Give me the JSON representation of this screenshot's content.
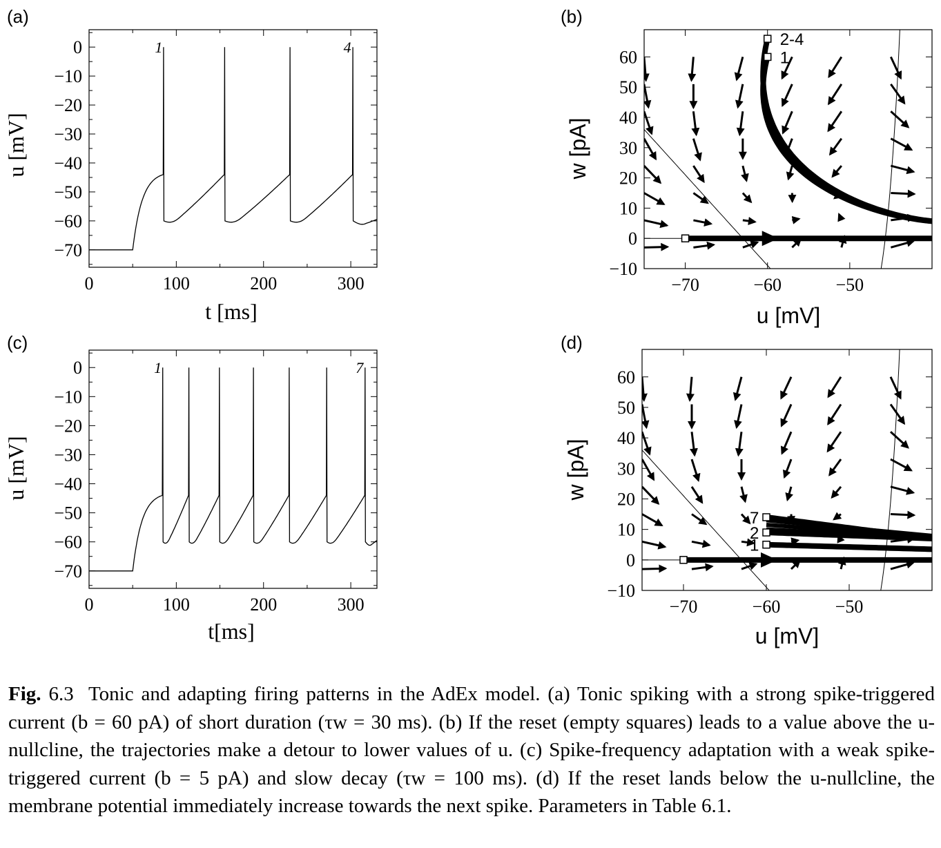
{
  "figure": {
    "panels": [
      {
        "id": "a",
        "label": "(a)",
        "type": "timeseries",
        "xlabel": "t  [ms]",
        "ylabel": "u [mV]",
        "xticks": [
          "0",
          "100",
          "200",
          "300"
        ],
        "yticks": [
          "0",
          "−10",
          "−20",
          "−30",
          "−40",
          "−50",
          "−60",
          "−70"
        ],
        "spike_labels": [
          "1",
          "4"
        ]
      },
      {
        "id": "b",
        "label": "(b)",
        "type": "phase",
        "xlabel": "u [mV]",
        "ylabel": "w [pA]",
        "xticks": [
          "−70",
          "−60",
          "−50"
        ],
        "yticks": [
          "60",
          "50",
          "40",
          "30",
          "20",
          "10",
          "0",
          "−10"
        ],
        "reset_labels": [
          "2-4",
          "1"
        ]
      },
      {
        "id": "c",
        "label": "(c)",
        "type": "timeseries",
        "xlabel": "t[ms]",
        "ylabel": "u [mV]",
        "xticks": [
          "0",
          "100",
          "200",
          "300"
        ],
        "yticks": [
          "0",
          "−10",
          "−20",
          "−30",
          "−40",
          "−50",
          "−60",
          "−70"
        ],
        "spike_labels": [
          "1",
          "7"
        ]
      },
      {
        "id": "d",
        "label": "(d)",
        "type": "phase",
        "xlabel": "u [mV]",
        "ylabel": "w [pA]",
        "xticks": [
          "−70",
          "−60",
          "−50"
        ],
        "yticks": [
          "60",
          "50",
          "40",
          "30",
          "20",
          "10",
          "0",
          "−10"
        ],
        "reset_labels": [
          "7",
          "2",
          "1"
        ]
      }
    ]
  },
  "chart_data": [
    {
      "type": "line",
      "panel": "a",
      "x_unit": "ms",
      "y_unit": "mV",
      "xlim": [
        0,
        330
      ],
      "ylim": [
        -76,
        6
      ],
      "spike_times": [
        85,
        155,
        230,
        302
      ],
      "rest_potential": -70,
      "reset_potential": -60,
      "peak_potential": 0,
      "input_onset": 50
    },
    {
      "type": "line",
      "panel": "b",
      "x_unit": "mV",
      "y_unit": "pA",
      "xlim": [
        -75,
        -40
      ],
      "ylim": [
        -10,
        69
      ],
      "reset_points": [
        {
          "label": "2-4",
          "u": -60,
          "w": 66
        },
        {
          "label": "1",
          "u": -60,
          "w": 60
        },
        {
          "label": "",
          "u": -70,
          "w": 0
        }
      ]
    },
    {
      "type": "line",
      "panel": "c",
      "x_unit": "ms",
      "y_unit": "mV",
      "xlim": [
        0,
        330
      ],
      "ylim": [
        -76,
        6
      ],
      "spike_times": [
        84,
        114,
        149,
        188,
        229,
        272,
        316
      ],
      "rest_potential": -70,
      "reset_potential": -60,
      "peak_potential": 0,
      "input_onset": 50
    },
    {
      "type": "line",
      "panel": "d",
      "x_unit": "mV",
      "y_unit": "pA",
      "xlim": [
        -75,
        -40
      ],
      "ylim": [
        -10,
        69
      ],
      "reset_points": [
        {
          "label": "7",
          "u": -60,
          "w": 14
        },
        {
          "label": "2",
          "u": -60,
          "w": 9
        },
        {
          "label": "1",
          "u": -60,
          "w": 5
        },
        {
          "label": "",
          "u": -70,
          "w": 0
        }
      ]
    }
  ],
  "caption": {
    "fig_label": "Fig.",
    "fig_number": "6.3",
    "text": "Tonic and adapting firing patterns in the AdEx model. (a) Tonic spiking with a strong spike-triggered current (b = 60 pA) of short duration (τw = 30 ms). (b) If the reset (empty squares) leads to a value above the u-nullcline, the trajectories make a detour to lower values of u. (c) Spike-frequency adaptation with a weak spike-triggered current (b = 5 pA) and slow decay (τw = 100 ms). (d) If the reset lands below the u-nullcline, the membrane potential immediately increase towards the next spike. Parameters in Table 6.1."
  }
}
